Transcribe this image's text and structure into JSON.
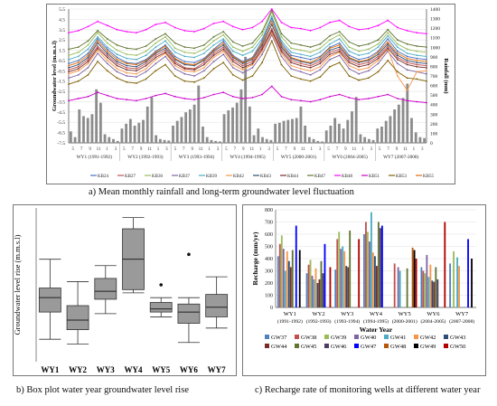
{
  "captions": {
    "a": "a) Mean monthly rainfall and long-term groundwater level fluctuation",
    "b": "b) Box plot water year groundwater level rise",
    "c": "c) Recharge rate of monitoring wells at different water year"
  },
  "chart_data": [
    {
      "type": "line",
      "ylabel": "Groundwater level (m.m.s.l)",
      "y2label": "Rainfall (mm)",
      "ylim": [
        -7.5,
        5.5
      ],
      "yticks": [
        "5.5",
        "4.5",
        "3.5",
        "2.5",
        "1.5",
        "0.5",
        "-0.5",
        "-1.5",
        "-2.5",
        "-3.5",
        "-4.5",
        "-5.5",
        "-6.5",
        "-7.5"
      ],
      "y2lim": [
        0,
        1400
      ],
      "y2ticks": [
        "1400",
        "1300",
        "1200",
        "1100",
        "1000",
        "900",
        "800",
        "700",
        "600",
        "500",
        "400",
        "300",
        "200",
        "100",
        "0"
      ],
      "month_labels": [
        "5",
        "7",
        "9",
        "11",
        "1",
        "3",
        "5",
        "7",
        "9",
        "11",
        "1",
        "3",
        "5",
        "7",
        "9",
        "11",
        "1",
        "3",
        "5",
        "7",
        "9",
        "11",
        "1",
        "3",
        "5",
        "7",
        "9",
        "11",
        "1",
        "3",
        "5",
        "7",
        "9",
        "11",
        "1",
        "3",
        "5",
        "7",
        "9",
        "11",
        "1",
        "3"
      ],
      "water_years": [
        "WY1 (1991-1992)",
        "WY2 (1992-1993)",
        "WY3 (1993-1994)",
        "WY4 (1994-1995)",
        "WY5 (2000-2001)",
        "WY6 (2004-2005)",
        "WY7 (2007-2008)"
      ],
      "rainfall": [
        120,
        60,
        350,
        280,
        260,
        300,
        560,
        420,
        90,
        60,
        40,
        20,
        150,
        200,
        250,
        180,
        210,
        240,
        380,
        480,
        80,
        40,
        30,
        25,
        180,
        230,
        270,
        320,
        350,
        400,
        600,
        170,
        60,
        30,
        20,
        15,
        300,
        340,
        370,
        420,
        560,
        900,
        380,
        80,
        150,
        60,
        40,
        30,
        200,
        210,
        230,
        240,
        250,
        260,
        380,
        180,
        60,
        40,
        20,
        15,
        130,
        180,
        260,
        200,
        150,
        240,
        330,
        480,
        90,
        60,
        40,
        30,
        150,
        170,
        230,
        280,
        350,
        400,
        470,
        620,
        260,
        110,
        60,
        50
      ],
      "series": [
        {
          "name": "KB24",
          "color": "#4472c4",
          "values": [
            0.2,
            0.5,
            1.2,
            2.6,
            1.6,
            0.8,
            0.3,
            0.2,
            0.6,
            1.4,
            2.0,
            0.9,
            0.4,
            0.3,
            0.7,
            1.6,
            2.4,
            1.0,
            0.4,
            0.8,
            2.4,
            4.6,
            2.2,
            1.0,
            0.8,
            0.6,
            0.9,
            1.8,
            2.2,
            1.0,
            0.6,
            0.8,
            1.4,
            2.6,
            1.4,
            0.9,
            0.7,
            0.6
          ]
        },
        {
          "name": "KB27",
          "color": "#c0504d",
          "values": [
            -0.4,
            -0.1,
            0.6,
            1.9,
            1.0,
            0.2,
            -0.2,
            -0.3,
            0.2,
            1.0,
            1.5,
            0.4,
            -0.2,
            -0.3,
            0.3,
            1.2,
            1.8,
            0.6,
            0.0,
            0.4,
            1.8,
            3.6,
            1.6,
            0.5,
            0.2,
            0.0,
            0.4,
            1.3,
            1.6,
            0.5,
            0.1,
            0.3,
            0.9,
            1.9,
            0.8,
            0.3,
            0.1,
            0.0
          ]
        },
        {
          "name": "KB30",
          "color": "#9bbb59",
          "values": [
            1.0,
            1.3,
            2.0,
            3.2,
            2.2,
            1.5,
            1.1,
            1.0,
            1.4,
            2.2,
            2.8,
            1.7,
            1.3,
            1.2,
            1.6,
            2.4,
            3.0,
            1.8,
            1.4,
            1.8,
            3.0,
            5.2,
            2.8,
            1.7,
            1.5,
            1.3,
            1.7,
            2.5,
            3.0,
            1.8,
            1.4,
            1.6,
            2.1,
            3.2,
            2.1,
            1.6,
            1.4,
            1.3
          ]
        },
        {
          "name": "KB37",
          "color": "#8064a2",
          "values": [
            -1.2,
            -0.9,
            -0.2,
            1.2,
            0.2,
            -0.6,
            -1.0,
            -1.1,
            -0.6,
            0.2,
            0.9,
            -0.3,
            -0.8,
            -1.0,
            -0.5,
            0.4,
            1.1,
            -0.2,
            -0.7,
            -0.2,
            1.1,
            3.0,
            0.9,
            -0.3,
            -0.6,
            -0.9,
            -0.4,
            0.6,
            1.0,
            -0.3,
            -0.8,
            -0.5,
            0.2,
            1.4,
            0.2,
            -0.4,
            -0.6,
            -0.8
          ]
        },
        {
          "name": "KB39",
          "color": "#4bacc6",
          "values": [
            0.6,
            0.9,
            1.6,
            2.8,
            1.8,
            1.1,
            0.7,
            0.6,
            1.0,
            1.8,
            2.4,
            1.3,
            0.9,
            0.8,
            1.2,
            2.0,
            2.6,
            1.4,
            1.0,
            1.4,
            2.6,
            4.8,
            2.4,
            1.3,
            1.1,
            0.9,
            1.3,
            2.1,
            2.6,
            1.4,
            1.0,
            1.2,
            1.8,
            2.9,
            1.8,
            1.2,
            1.0,
            0.9
          ]
        },
        {
          "name": "KB42",
          "color": "#f79646",
          "values": [
            -0.8,
            -0.5,
            0.2,
            1.5,
            0.5,
            -0.3,
            -0.7,
            -0.8,
            -0.3,
            0.6,
            1.2,
            0.0,
            -0.5,
            -0.6,
            -0.2,
            0.8,
            1.4,
            0.1,
            -0.4,
            0.1,
            1.4,
            3.2,
            1.2,
            0.0,
            -0.3,
            -0.5,
            -0.1,
            0.9,
            1.3,
            0.0,
            -0.4,
            -0.2,
            0.5,
            1.6,
            -1.0,
            -2.4,
            -0.6,
            -0.5
          ]
        },
        {
          "name": "KB43",
          "color": "#2c4d75",
          "values": [
            -0.2,
            0.1,
            0.8,
            2.2,
            1.2,
            0.4,
            0.0,
            -0.1,
            0.4,
            1.2,
            1.7,
            0.6,
            0.1,
            0.0,
            0.5,
            1.4,
            2.0,
            0.8,
            0.2,
            0.6,
            2.0,
            4.0,
            1.8,
            0.7,
            0.4,
            0.2,
            0.6,
            1.5,
            1.8,
            0.7,
            0.3,
            0.5,
            1.1,
            2.1,
            1.0,
            0.5,
            0.3,
            0.2
          ]
        },
        {
          "name": "KB44",
          "color": "#772c2a",
          "values": [
            -0.6,
            -0.3,
            0.4,
            1.7,
            0.8,
            0.0,
            -0.4,
            -0.5,
            0.0,
            0.8,
            1.3,
            0.2,
            -0.3,
            -0.4,
            0.1,
            1.0,
            1.6,
            0.4,
            -0.2,
            0.2,
            1.6,
            3.4,
            1.4,
            0.3,
            0.0,
            -0.2,
            0.2,
            1.1,
            1.4,
            0.3,
            -0.1,
            0.1,
            0.7,
            1.7,
            0.6,
            0.1,
            -0.1,
            -0.2
          ]
        },
        {
          "name": "KB47",
          "color": "#5f7530",
          "values": [
            1.6,
            1.8,
            2.4,
            3.4,
            2.6,
            2.0,
            1.7,
            1.6,
            1.9,
            2.6,
            3.1,
            2.2,
            1.8,
            1.7,
            2.0,
            2.8,
            3.3,
            2.3,
            1.9,
            2.2,
            3.3,
            5.4,
            3.1,
            2.2,
            2.0,
            1.8,
            2.1,
            2.9,
            3.3,
            2.3,
            1.9,
            2.1,
            2.5,
            3.5,
            2.5,
            2.1,
            1.9,
            1.8
          ]
        },
        {
          "name": "KB48",
          "color": "#ff00ff",
          "values": [
            3.2,
            3.4,
            3.8,
            4.3,
            3.9,
            3.5,
            3.3,
            3.2,
            3.5,
            4.0,
            4.2,
            3.7,
            3.4,
            3.3,
            3.6,
            4.1,
            4.3,
            3.8,
            3.5,
            3.7,
            4.3,
            5.5,
            4.2,
            3.7,
            3.6,
            3.4,
            3.7,
            4.2,
            4.4,
            3.8,
            3.5,
            3.6,
            3.9,
            4.4,
            3.7,
            3.4,
            3.2,
            3.1
          ]
        },
        {
          "name": "KB51",
          "color": "#cc00cc",
          "values": [
            -3.4,
            -3.2,
            -3.0,
            -2.6,
            -2.9,
            -3.2,
            -3.3,
            -3.4,
            -3.2,
            -2.9,
            -2.7,
            -3.0,
            -3.2,
            -3.3,
            -3.1,
            -2.8,
            -2.6,
            -3.0,
            -3.2,
            -3.1,
            -2.8,
            -2.0,
            -3.0,
            -3.3,
            -3.4,
            -3.5,
            -3.3,
            -3.0,
            -2.8,
            -3.1,
            -3.3,
            -3.2,
            -3.0,
            -2.8,
            -3.2,
            -3.4,
            -3.5,
            -3.6
          ]
        },
        {
          "name": "KB53",
          "color": "#7f6000",
          "values": [
            -1.8,
            -1.5,
            -0.9,
            0.4,
            -0.5,
            -1.2,
            -1.6,
            -1.7,
            -1.3,
            -0.5,
            0.1,
            -1.0,
            -1.5,
            -1.6,
            -1.2,
            -0.3,
            0.3,
            -0.9,
            -1.4,
            -1.0,
            0.3,
            2.4,
            0.1,
            -1.0,
            -1.3,
            -1.5,
            -1.1,
            -0.1,
            0.3,
            -1.0,
            -1.4,
            -1.2,
            -0.6,
            0.5,
            -0.6,
            -1.2,
            -1.3,
            -1.5
          ]
        },
        {
          "name": "KB55",
          "color": "#e46c0a",
          "values": [
            0.0,
            0.3,
            1.0,
            2.4,
            1.4,
            0.6,
            0.2,
            0.1,
            0.5,
            1.3,
            1.9,
            0.7,
            0.2,
            0.1,
            0.6,
            1.5,
            2.2,
            0.9,
            0.3,
            0.7,
            2.2,
            4.3,
            2.0,
            0.8,
            0.5,
            0.3,
            0.8,
            1.7,
            2.0,
            0.8,
            0.4,
            0.6,
            1.3,
            2.3,
            1.2,
            0.7,
            0.5,
            0.4
          ]
        }
      ]
    },
    {
      "type": "box",
      "ylabel": "Groundwater level rise (m.m.s.l)",
      "categories": [
        "WY1",
        "WY2",
        "WY3",
        "WY4",
        "WY5",
        "WY6",
        "WY7"
      ],
      "ylim": [
        0.8,
        5.6
      ],
      "boxes": [
        {
          "min": 1.5,
          "q1": 2.35,
          "median": 2.8,
          "q3": 3.1,
          "max": 4.0
        },
        {
          "min": 1.35,
          "q1": 1.8,
          "median": 2.1,
          "q3": 2.55,
          "max": 3.3
        },
        {
          "min": 2.3,
          "q1": 2.75,
          "median": 3.0,
          "q3": 3.4,
          "max": 3.8
        },
        {
          "min": 2.95,
          "q1": 3.05,
          "median": 4.0,
          "q3": 4.95,
          "max": 5.3
        },
        {
          "min": 2.2,
          "q1": 2.35,
          "median": 2.45,
          "q3": 2.65,
          "max": 2.8,
          "outliers": [
            3.2
          ]
        },
        {
          "min": 1.4,
          "q1": 2.0,
          "median": 2.35,
          "q3": 2.6,
          "max": 2.8,
          "outliers": [
            4.15
          ]
        },
        {
          "min": 1.85,
          "q1": 2.2,
          "median": 2.5,
          "q3": 2.9,
          "max": 3.45
        }
      ]
    },
    {
      "type": "bar",
      "ylabel": "Recharge (mm/yr)",
      "xlabel": "Water Year",
      "ylim": [
        0,
        800
      ],
      "yticks": [
        0,
        100,
        200,
        300,
        400,
        500,
        600,
        700,
        800
      ],
      "categories": [
        "WY1\n(1991-1992)",
        "WY2\n(1992-1993)",
        "WY3\n(1993-1994)",
        "WY4\n(1994-1995)",
        "WY5\n(2000-2001)",
        "WY6\n(2004-2005)",
        "WY7\n(2007-2008)"
      ],
      "series": [
        {
          "name": "GW37",
          "color": "#4f81bd",
          "values": [
            420,
            280,
            310,
            600,
            0,
            330,
            360
          ]
        },
        {
          "name": "GW38",
          "color": "#c0504d",
          "values": [
            520,
            350,
            560,
            700,
            360,
            300,
            0
          ]
        },
        {
          "name": "GW39",
          "color": "#9bbb59",
          "values": [
            590,
            390,
            620,
            620,
            0,
            280,
            460
          ]
        },
        {
          "name": "GW40",
          "color": "#8064a2",
          "values": [
            480,
            260,
            480,
            540,
            330,
            430,
            0
          ]
        },
        {
          "name": "GW41",
          "color": "#4bacc6",
          "values": [
            300,
            230,
            500,
            780,
            300,
            250,
            410
          ]
        },
        {
          "name": "GW42",
          "color": "#f79646",
          "values": [
            460,
            320,
            460,
            450,
            0,
            350,
            340
          ]
        },
        {
          "name": "GW43",
          "color": "#2c4d75",
          "values": [
            380,
            200,
            340,
            420,
            0,
            220,
            0
          ]
        },
        {
          "name": "GW44",
          "color": "#772c2a",
          "values": [
            330,
            230,
            330,
            340,
            0,
            210,
            0
          ]
        },
        {
          "name": "GW45",
          "color": "#5f7530",
          "values": [
            470,
            380,
            630,
            700,
            320,
            330,
            0
          ]
        },
        {
          "name": "GW46",
          "color": "#4d3b62",
          "values": [
            0,
            280,
            0,
            650,
            0,
            230,
            0
          ]
        },
        {
          "name": "GW47",
          "color": "#0000ff",
          "values": [
            670,
            520,
            0,
            670,
            0,
            0,
            560
          ]
        },
        {
          "name": "GW48",
          "color": "#b65708",
          "values": [
            0,
            0,
            0,
            0,
            490,
            0,
            0
          ]
        },
        {
          "name": "GW49",
          "color": "#000000",
          "values": [
            470,
            0,
            0,
            0,
            470,
            0,
            400
          ]
        },
        {
          "name": "GW50",
          "color": "#b00000",
          "values": [
            0,
            330,
            560,
            0,
            400,
            700,
            0
          ]
        }
      ]
    }
  ]
}
